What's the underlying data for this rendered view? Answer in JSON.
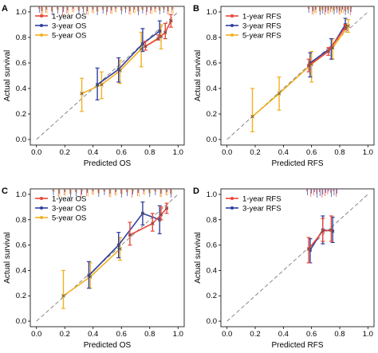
{
  "colors": {
    "one_year": "#e8473a",
    "three_year": "#2f3f9e",
    "five_year": "#f2b01e",
    "diagonal": "#6e6e6e",
    "center_marker": "#555555"
  },
  "chart_data": [
    {
      "type": "line",
      "panel_label": "A",
      "xlabel": "Predicted OS",
      "ylabel": "Actual survival",
      "xlim": [
        0,
        1
      ],
      "ylim": [
        0,
        1
      ],
      "xticks": [
        "0.0",
        "0.2",
        "0.4",
        "0.6",
        "0.8",
        "1.0"
      ],
      "yticks": [
        "0.0",
        "0.2",
        "0.4",
        "0.6",
        "0.8",
        "1.0"
      ],
      "grid": false,
      "legend_position": "top-left",
      "rug": true,
      "series": [
        {
          "name": "1-year OS",
          "color": "one_year",
          "x": [
            0.78,
            0.87,
            0.92,
            0.96
          ],
          "y": [
            0.73,
            0.79,
            0.84,
            0.93
          ],
          "lo": [
            0.7,
            0.78,
            0.79,
            0.88
          ],
          "hi": [
            0.77,
            0.82,
            0.91,
            0.98
          ]
        },
        {
          "name": "3-year OS",
          "color": "three_year",
          "x": [
            0.43,
            0.58,
            0.75,
            0.87
          ],
          "y": [
            0.43,
            0.55,
            0.75,
            0.85
          ],
          "lo": [
            0.31,
            0.45,
            0.69,
            0.8
          ],
          "hi": [
            0.56,
            0.64,
            0.87,
            0.93
          ]
        },
        {
          "name": "5-year OS",
          "color": "five_year",
          "x": [
            0.31,
            0.45,
            0.58,
            0.73,
            0.87
          ],
          "y": [
            0.36,
            0.43,
            0.54,
            0.71,
            0.81
          ],
          "lo": [
            0.22,
            0.32,
            0.44,
            0.57,
            0.71
          ],
          "hi": [
            0.48,
            0.53,
            0.62,
            0.84,
            0.9
          ]
        }
      ]
    },
    {
      "type": "line",
      "panel_label": "B",
      "xlabel": "Predicted RFS",
      "ylabel": "Actual survival",
      "xlim": [
        0,
        1
      ],
      "ylim": [
        0,
        1
      ],
      "xticks": [
        "0.0",
        "0.2",
        "0.4",
        "0.6",
        "0.8",
        "1.0"
      ],
      "yticks": [
        "0.0",
        "0.2",
        "0.4",
        "0.6",
        "0.8",
        "1.0"
      ],
      "grid": false,
      "legend_position": "top-left",
      "rug": true,
      "series": [
        {
          "name": "1-year RFS",
          "color": "one_year",
          "x": [
            0.59,
            0.73,
            0.85
          ],
          "y": [
            0.58,
            0.69,
            0.88
          ],
          "lo": [
            0.53,
            0.66,
            0.86
          ],
          "hi": [
            0.63,
            0.72,
            0.9
          ]
        },
        {
          "name": "3-year RFS",
          "color": "three_year",
          "x": [
            0.59,
            0.74,
            0.84
          ],
          "y": [
            0.6,
            0.72,
            0.9
          ],
          "lo": [
            0.49,
            0.63,
            0.87
          ],
          "hi": [
            0.68,
            0.79,
            0.95
          ]
        },
        {
          "name": "5-year RFS",
          "color": "five_year",
          "x": [
            0.17,
            0.36,
            0.59,
            0.74,
            0.85
          ],
          "y": [
            0.18,
            0.36,
            0.59,
            0.72,
            0.89
          ],
          "lo": [
            0.06,
            0.23,
            0.45,
            0.63,
            0.84
          ],
          "hi": [
            0.4,
            0.49,
            0.69,
            0.79,
            0.94
          ]
        }
      ]
    },
    {
      "type": "line",
      "panel_label": "C",
      "xlabel": "Predicted OS",
      "ylabel": "Actual survival",
      "xlim": [
        0,
        1
      ],
      "ylim": [
        0,
        1
      ],
      "xticks": [
        "0.0",
        "0.2",
        "0.4",
        "0.6",
        "0.8",
        "1.0"
      ],
      "yticks": [
        "0.0",
        "0.2",
        "0.4",
        "0.6",
        "0.8",
        "1.0"
      ],
      "grid": false,
      "legend_position": "top-left",
      "rug": true,
      "series": [
        {
          "name": "1-year OS",
          "color": "one_year",
          "x": [
            0.67,
            0.83,
            0.89,
            0.93
          ],
          "y": [
            0.68,
            0.77,
            0.84,
            0.89
          ],
          "lo": [
            0.6,
            0.71,
            0.8,
            0.85
          ],
          "hi": [
            0.78,
            0.85,
            0.9,
            0.93
          ]
        },
        {
          "name": "3-year OS",
          "color": "three_year",
          "x": [
            0.37,
            0.58,
            0.75,
            0.87
          ],
          "y": [
            0.36,
            0.6,
            0.85,
            0.8
          ],
          "lo": [
            0.26,
            0.5,
            0.76,
            0.69
          ],
          "hi": [
            0.47,
            0.7,
            0.94,
            0.91
          ]
        },
        {
          "name": "5-year OS",
          "color": "five_year",
          "x": [
            0.18,
            0.37,
            0.58
          ],
          "y": [
            0.2,
            0.35,
            0.57
          ],
          "lo": [
            0.1,
            0.26,
            0.48
          ],
          "hi": [
            0.4,
            0.46,
            0.66
          ]
        }
      ]
    },
    {
      "type": "line",
      "panel_label": "D",
      "xlabel": "Predicted RFS",
      "ylabel": "Actual survival",
      "xlim": [
        0,
        1
      ],
      "ylim": [
        0,
        1
      ],
      "xticks": [
        "0.0",
        "0.2",
        "0.4",
        "0.6",
        "0.8",
        "1.0"
      ],
      "yticks": [
        "0.0",
        "0.2",
        "0.4",
        "0.6",
        "0.8",
        "1.0"
      ],
      "grid": false,
      "legend_position": "top-left",
      "rug": true,
      "series": [
        {
          "name": "1-year RFS",
          "color": "one_year",
          "x": [
            0.59,
            0.69,
            0.75
          ],
          "y": [
            0.57,
            0.71,
            0.72
          ],
          "lo": [
            0.46,
            0.63,
            0.63
          ],
          "hi": [
            0.66,
            0.81,
            0.83
          ]
        },
        {
          "name": "3-year RFS",
          "color": "three_year",
          "x": [
            0.59,
            0.68,
            0.75
          ],
          "y": [
            0.56,
            0.72,
            0.71
          ],
          "lo": [
            0.46,
            0.61,
            0.62
          ],
          "hi": [
            0.65,
            0.83,
            0.82
          ]
        }
      ]
    }
  ]
}
